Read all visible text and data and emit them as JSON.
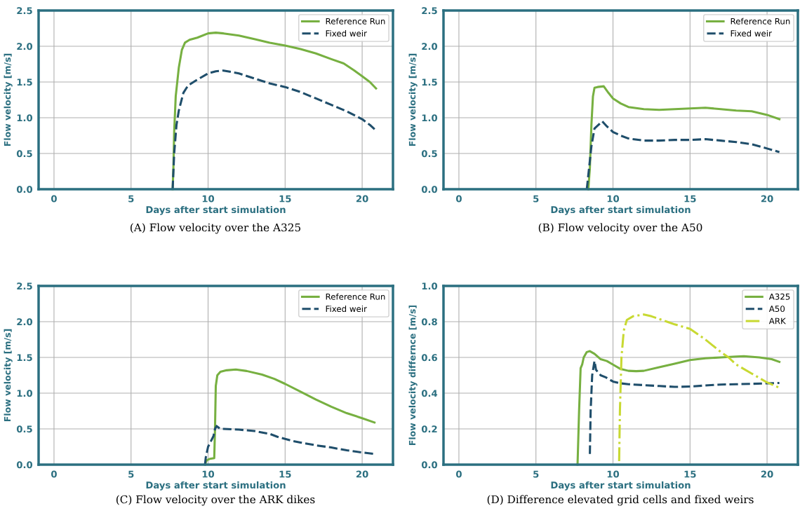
{
  "chart_data": [
    {
      "type": "line",
      "xlabel": "Days after start simulation",
      "ylabel": "Flow velocity [m/s]",
      "xlim": [
        -1,
        22
      ],
      "ylim": [
        0,
        2.5
      ],
      "xticks": [
        0,
        5,
        10,
        15,
        20
      ],
      "yticks": [
        {
          "value": 0,
          "label": "0.0"
        },
        {
          "value": 0.5,
          "label": "0.5"
        },
        {
          "value": 1,
          "label": "1.0"
        },
        {
          "value": 1.5,
          "label": "1.5"
        },
        {
          "value": 2,
          "label": "2.0"
        },
        {
          "value": 2.5,
          "label": "2.5"
        }
      ],
      "grid": true,
      "legend": "top right",
      "annotations": [
        "(A) Flow velocity over the A325"
      ],
      "series": [
        {
          "name": "Reference Run",
          "color": "#77b041",
          "line_style": "solid",
          "x": [
            7.7,
            7.75,
            7.8,
            7.9,
            8.1,
            8.3,
            8.5,
            8.8,
            9.3,
            10,
            10.5,
            11,
            12,
            13,
            14,
            15,
            16,
            17,
            18,
            18.8,
            19.5,
            20,
            20.5,
            20.9
          ],
          "values": [
            0,
            0.3,
            0.8,
            1.3,
            1.7,
            1.95,
            2.05,
            2.09,
            2.12,
            2.18,
            2.19,
            2.18,
            2.15,
            2.1,
            2.05,
            2.01,
            1.96,
            1.9,
            1.82,
            1.76,
            1.66,
            1.58,
            1.5,
            1.41
          ]
        },
        {
          "name": "Fixed weir",
          "color": "#1f4e6b",
          "line_style": "dashed",
          "x": [
            7.7,
            7.8,
            7.95,
            8.1,
            8.4,
            8.7,
            9.2,
            10,
            10.5,
            11,
            12,
            13,
            14,
            15,
            16,
            17,
            18,
            19,
            20,
            20.5,
            20.9
          ],
          "values": [
            0,
            0.5,
            0.9,
            1.1,
            1.35,
            1.45,
            1.52,
            1.62,
            1.65,
            1.66,
            1.62,
            1.55,
            1.48,
            1.43,
            1.36,
            1.27,
            1.18,
            1.09,
            0.98,
            0.9,
            0.82
          ]
        }
      ]
    },
    {
      "type": "line",
      "xlabel": "Days after start simulation",
      "ylabel": "Flow velocity [m/s]",
      "xlim": [
        -1,
        22
      ],
      "ylim": [
        0,
        2.5
      ],
      "xticks": [
        0,
        5,
        10,
        15,
        20
      ],
      "yticks": [
        {
          "value": 0,
          "label": "0.0"
        },
        {
          "value": 0.5,
          "label": "0.5"
        },
        {
          "value": 1,
          "label": "1.0"
        },
        {
          "value": 1.5,
          "label": "1.5"
        },
        {
          "value": 2,
          "label": "2.0"
        },
        {
          "value": 2.5,
          "label": "2.5"
        }
      ],
      "grid": true,
      "legend": "top right",
      "annotations": [
        "(B) Flow velocity over the A50"
      ],
      "series": [
        {
          "name": "Reference Run",
          "color": "#77b041",
          "line_style": "solid",
          "x": [
            8.4,
            8.5,
            8.6,
            8.7,
            8.8,
            9,
            9.4,
            9.7,
            10,
            10.5,
            11,
            12,
            13,
            14,
            15,
            16,
            17,
            18,
            19,
            20,
            20.8
          ],
          "values": [
            0,
            0.3,
            0.9,
            1.3,
            1.42,
            1.43,
            1.44,
            1.35,
            1.27,
            1.2,
            1.15,
            1.12,
            1.11,
            1.12,
            1.13,
            1.14,
            1.12,
            1.1,
            1.09,
            1.04,
            0.98
          ]
        },
        {
          "name": "Fixed weir",
          "color": "#1f4e6b",
          "line_style": "dashed",
          "x": [
            8.3,
            8.45,
            8.6,
            8.8,
            9.3,
            9.6,
            10,
            10.5,
            11,
            12,
            13,
            14,
            15,
            16,
            17,
            18,
            19,
            20,
            20.8
          ],
          "values": [
            0,
            0.3,
            0.6,
            0.85,
            0.95,
            0.88,
            0.8,
            0.75,
            0.71,
            0.68,
            0.68,
            0.69,
            0.69,
            0.7,
            0.68,
            0.66,
            0.63,
            0.57,
            0.52
          ]
        }
      ]
    },
    {
      "type": "line",
      "xlabel": "Days after start simulation",
      "ylabel": "Flow velocity [m/s]",
      "xlim": [
        -1,
        22
      ],
      "ylim": [
        0,
        2.5
      ],
      "xticks": [
        0,
        5,
        10,
        15,
        20
      ],
      "yticks": [
        {
          "value": 0,
          "label": "0.0"
        },
        {
          "value": 0.5,
          "label": "0.5"
        },
        {
          "value": 1,
          "label": "1.0"
        },
        {
          "value": 1.5,
          "label": "1.5"
        },
        {
          "value": 2,
          "label": "2.0"
        },
        {
          "value": 2.5,
          "label": "2.5"
        }
      ],
      "grid": true,
      "legend": "top right",
      "annotations": [
        "(C) Flow velocity over the ARK dikes"
      ],
      "series": [
        {
          "name": "Reference Run",
          "color": "#77b041",
          "line_style": "solid",
          "x": [
            9.8,
            9.9,
            10.1,
            10.4,
            10.45,
            10.5,
            10.6,
            10.8,
            11.2,
            11.8,
            12.5,
            13.5,
            14.3,
            15,
            16,
            17,
            18,
            19,
            20,
            20.8
          ],
          "values": [
            0,
            0.06,
            0.08,
            0.09,
            0.5,
            1.1,
            1.25,
            1.3,
            1.32,
            1.33,
            1.31,
            1.26,
            1.2,
            1.13,
            1.02,
            0.91,
            0.81,
            0.72,
            0.65,
            0.59
          ]
        },
        {
          "name": "Fixed weir",
          "color": "#1f4e6b",
          "line_style": "dashed",
          "x": [
            9.8,
            9.85,
            10,
            10.35,
            10.45,
            10.55,
            10.8,
            11,
            12,
            13,
            14,
            14.5,
            15.5,
            16,
            17,
            18,
            19,
            20,
            20.8
          ],
          "values": [
            0,
            0.1,
            0.25,
            0.4,
            0.5,
            0.54,
            0.5,
            0.5,
            0.49,
            0.47,
            0.43,
            0.39,
            0.33,
            0.31,
            0.27,
            0.24,
            0.2,
            0.17,
            0.15
          ]
        }
      ]
    },
    {
      "type": "line",
      "xlabel": "Days after start simulation",
      "ylabel": "Flow velocity differnce [m/s]",
      "xlim": [
        -1,
        22
      ],
      "ylim": [
        0,
        1
      ],
      "xticks": [
        0,
        5,
        10,
        15,
        20
      ],
      "yticks": [
        {
          "value": 0,
          "label": "0.0"
        },
        {
          "value": 0.2,
          "label": "0.2"
        },
        {
          "value": 0.4,
          "label": "0.4"
        },
        {
          "value": 0.6,
          "label": "0.6"
        },
        {
          "value": 0.8,
          "label": "0.8"
        },
        {
          "value": 1,
          "label": "1.0"
        }
      ],
      "grid": true,
      "legend": "top right",
      "annotations": [
        "(D) Difference elevated grid cells and fixed weirs"
      ],
      "series": [
        {
          "name": "A325",
          "color": "#77b041",
          "line_style": "solid",
          "x": [
            7.7,
            7.8,
            7.9,
            8,
            8.1,
            8.3,
            8.5,
            8.8,
            9.2,
            9.6,
            10,
            10.5,
            11,
            11.5,
            12,
            13,
            14,
            15,
            16,
            17,
            18,
            18.5,
            19.5,
            20.3,
            20.8
          ],
          "values": [
            0,
            0.3,
            0.54,
            0.56,
            0.6,
            0.63,
            0.635,
            0.62,
            0.59,
            0.58,
            0.56,
            0.535,
            0.525,
            0.523,
            0.525,
            0.545,
            0.565,
            0.585,
            0.595,
            0.6,
            0.605,
            0.607,
            0.6,
            0.59,
            0.575
          ]
        },
        {
          "name": "A50",
          "color": "#1f4e6b",
          "line_style": "dashed",
          "x": [
            8.5,
            8.55,
            8.65,
            8.8,
            8.9,
            9.2,
            9.5,
            10,
            10.5,
            11,
            12,
            13,
            14,
            15,
            16,
            17,
            18,
            19,
            20,
            20.8
          ],
          "values": [
            0.06,
            0.3,
            0.5,
            0.58,
            0.53,
            0.5,
            0.49,
            0.465,
            0.455,
            0.45,
            0.445,
            0.44,
            0.435,
            0.437,
            0.443,
            0.448,
            0.45,
            0.452,
            0.455,
            0.457
          ]
        },
        {
          "name": "ARK",
          "color": "#c8d932",
          "line_style": "dashdot",
          "x": [
            10.4,
            10.45,
            10.55,
            10.7,
            10.9,
            11.3,
            12,
            12.5,
            13,
            13.5,
            14,
            15,
            16,
            17,
            17.5,
            18,
            19,
            20,
            20.8
          ],
          "values": [
            0.02,
            0.3,
            0.6,
            0.75,
            0.81,
            0.83,
            0.84,
            0.83,
            0.815,
            0.8,
            0.785,
            0.76,
            0.7,
            0.63,
            0.6,
            0.56,
            0.51,
            0.46,
            0.43
          ]
        }
      ]
    }
  ]
}
